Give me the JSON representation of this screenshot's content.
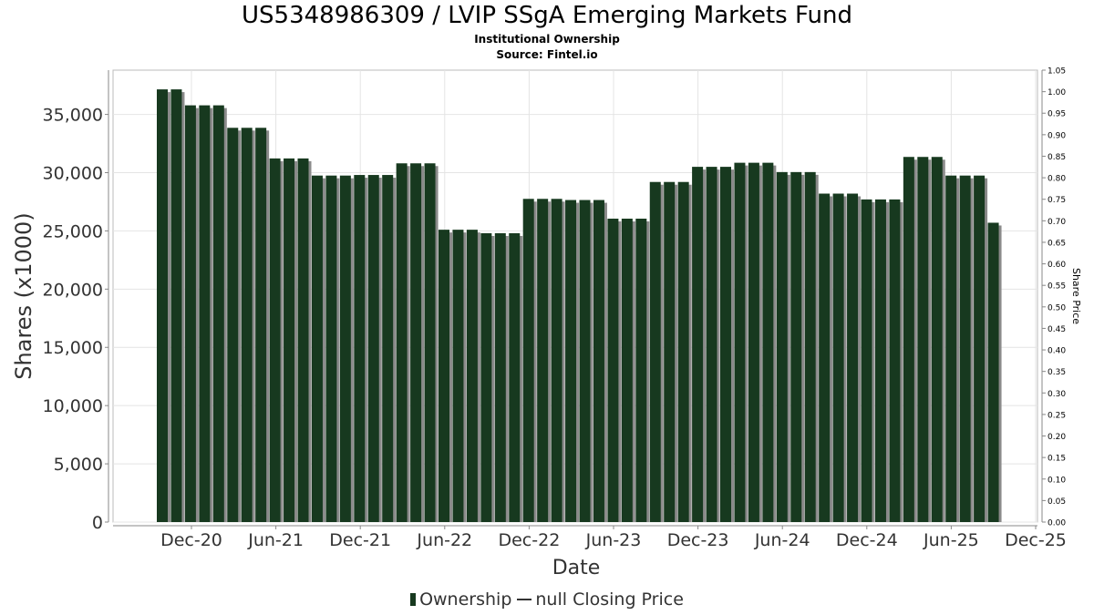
{
  "chart": {
    "title": "US5348986309 / LVIP SSgA Emerging Markets Fund",
    "subtitle": "Institutional Ownership",
    "source": "Source: Fintel.io",
    "legend_ownership": "Ownership",
    "legend_price": "null Closing Price",
    "colors": {
      "bar": "#17391f",
      "bar_shadow": "#8a8a8a",
      "grid": "#e4e4e4",
      "axis": "#888888"
    }
  },
  "chart_data": {
    "type": "bar",
    "title": "US5348986309 / LVIP SSgA Emerging Markets Fund",
    "subtitle": "Institutional Ownership",
    "xlabel": "Date",
    "ylabel": "Shares (x1000)",
    "y2label": "Share Price",
    "ylim": [
      0,
      38800
    ],
    "y2lim": [
      0,
      1.05
    ],
    "grid": true,
    "legend_position": "bottom",
    "x_ticks": [
      "Dec-20",
      "Jun-21",
      "Dec-21",
      "Jun-22",
      "Dec-22",
      "Jun-23",
      "Dec-23",
      "Jun-24",
      "Dec-24",
      "Jun-25",
      "Dec-25"
    ],
    "y_ticks": [
      "0",
      "5,000",
      "10,000",
      "15,000",
      "20,000",
      "25,000",
      "30,000",
      "35,000"
    ],
    "y2_ticks": [
      "0.00",
      "0.05",
      "0.10",
      "0.15",
      "0.20",
      "0.25",
      "0.30",
      "0.35",
      "0.40",
      "0.45",
      "0.50",
      "0.55",
      "0.60",
      "0.65",
      "0.70",
      "0.75",
      "0.80",
      "0.85",
      "0.90",
      "0.95",
      "1.00",
      "1.05"
    ],
    "series": [
      {
        "name": "Ownership",
        "values": [
          37150,
          37150,
          35780,
          35780,
          35780,
          33850,
          33850,
          33850,
          31220,
          31220,
          31220,
          29750,
          29750,
          29750,
          29800,
          29800,
          29800,
          30800,
          30800,
          30800,
          25100,
          25100,
          25100,
          24800,
          24800,
          24800,
          27750,
          27750,
          27750,
          27650,
          27650,
          27650,
          26050,
          26050,
          26050,
          29200,
          29200,
          29200,
          30500,
          30500,
          30500,
          30850,
          30850,
          30850,
          30050,
          30050,
          30050,
          28200,
          28200,
          28200,
          27700,
          27700,
          27700,
          31350,
          31350,
          31350,
          29750,
          29750,
          29750,
          25700
        ]
      }
    ]
  }
}
